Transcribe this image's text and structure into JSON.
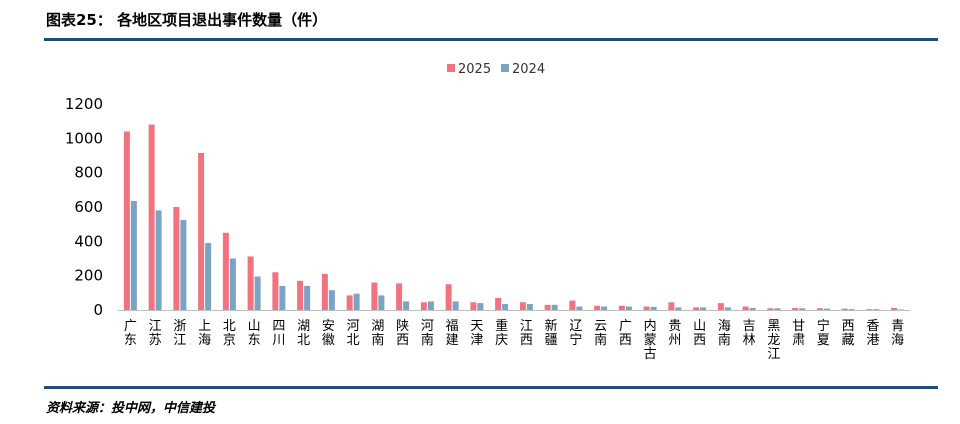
{
  "figure": {
    "title": "图表25： 各地区项目退出事件数量（件）",
    "source": "资料来源：投中网，中信建投"
  },
  "chart_data": {
    "type": "bar",
    "categories": [
      "广东",
      "江苏",
      "浙江",
      "上海",
      "北京",
      "山东",
      "四川",
      "湖北",
      "安徽",
      "河北",
      "湖南",
      "陕西",
      "河南",
      "福建",
      "天津",
      "重庆",
      "江西",
      "新疆",
      "辽宁",
      "云南",
      "广西",
      "内蒙古",
      "贵州",
      "山西",
      "海南",
      "吉林",
      "黑龙江",
      "甘肃",
      "宁夏",
      "西藏",
      "香港",
      "青海"
    ],
    "series": [
      {
        "name": "2025",
        "color": "#f0737f",
        "values": [
          1040,
          1080,
          600,
          915,
          450,
          312,
          220,
          170,
          210,
          85,
          160,
          155,
          45,
          150,
          45,
          70,
          45,
          30,
          55,
          25,
          25,
          20,
          45,
          15,
          40,
          20,
          10,
          12,
          10,
          8,
          5,
          12
        ]
      },
      {
        "name": "2024",
        "color": "#7aa3c4",
        "values": [
          635,
          580,
          525,
          390,
          300,
          195,
          140,
          140,
          115,
          95,
          85,
          50,
          50,
          50,
          40,
          35,
          35,
          30,
          20,
          20,
          20,
          18,
          15,
          15,
          15,
          12,
          10,
          10,
          8,
          5,
          5,
          3
        ]
      }
    ],
    "ylim": [
      0,
      1200
    ],
    "yticks": [
      0,
      200,
      400,
      600,
      800,
      1000,
      1200
    ],
    "legend": "top-center",
    "grid": false
  }
}
